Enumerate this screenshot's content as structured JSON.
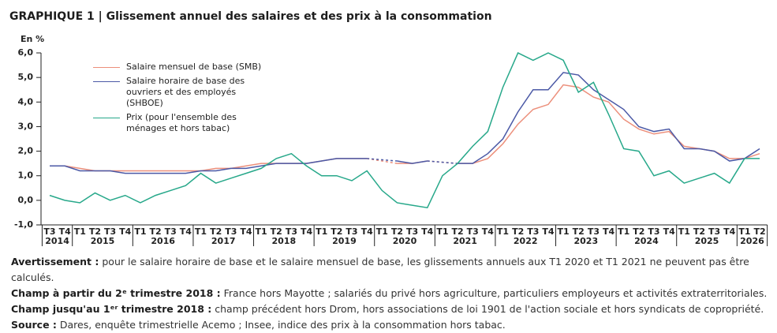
{
  "chart_data": {
    "type": "line",
    "title": "GRAPHIQUE 1 | Glissement annuel des salaires et des prix à la consommation",
    "y_label": "En %",
    "categories": [
      "T3",
      "T4",
      "T1",
      "T2",
      "T3",
      "T4",
      "T1",
      "T2",
      "T3",
      "T4",
      "T1",
      "T2",
      "T3",
      "T4",
      "T1",
      "T2",
      "T3",
      "T4",
      "T1",
      "T2",
      "T3",
      "T4",
      "T1",
      "T2",
      "T3",
      "T4",
      "T1",
      "T2",
      "T3",
      "T4",
      "T1",
      "T2",
      "T3",
      "T4",
      "T1",
      "T2",
      "T3",
      "T4",
      "T1",
      "T2",
      "T3",
      "T4",
      "T1",
      "T2",
      "T3",
      "T4",
      "T1",
      "T2"
    ],
    "years": [
      "2014",
      "2015",
      "2016",
      "2017",
      "2018",
      "2019",
      "2020",
      "2021",
      "2022",
      "2023",
      "2024",
      "2025",
      "2026"
    ],
    "ylim": [
      -1,
      6.2
    ],
    "yticks": [
      {
        "value": -1,
        "label": "-1,0"
      },
      {
        "value": 0,
        "label": "0,0"
      },
      {
        "value": 1,
        "label": "1,0"
      },
      {
        "value": 2,
        "label": "2,0"
      },
      {
        "value": 3,
        "label": "3,0"
      },
      {
        "value": 4,
        "label": "4,0"
      },
      {
        "value": 5,
        "label": "5,0"
      },
      {
        "value": 6,
        "label": "6,0"
      }
    ],
    "series": [
      {
        "name": "Salaire mensuel de base (SMB)",
        "color": "#ec8f7b",
        "values": [
          1.4,
          1.4,
          1.3,
          1.2,
          1.2,
          1.2,
          1.2,
          1.2,
          1.2,
          1.2,
          1.2,
          1.3,
          1.3,
          1.4,
          1.5,
          1.5,
          1.5,
          1.5,
          1.6,
          1.7,
          1.7,
          1.7,
          null,
          1.5,
          1.5,
          1.6,
          null,
          1.5,
          1.5,
          1.7,
          2.3,
          3.1,
          3.7,
          3.9,
          4.7,
          4.6,
          4.2,
          4.0,
          3.3,
          2.9,
          2.7,
          2.8,
          2.2,
          2.1,
          2.0,
          1.7,
          1.7,
          1.9
        ]
      },
      {
        "name": "Salaire horaire de base des ouvriers et des employés (SHBOE)",
        "color": "#4b59a6",
        "values": [
          1.4,
          1.4,
          1.2,
          1.2,
          1.2,
          1.1,
          1.1,
          1.1,
          1.1,
          1.1,
          1.2,
          1.2,
          1.3,
          1.3,
          1.4,
          1.5,
          1.5,
          1.5,
          1.6,
          1.7,
          1.7,
          1.7,
          null,
          1.6,
          1.5,
          1.6,
          null,
          1.5,
          1.5,
          1.9,
          2.5,
          3.6,
          4.5,
          4.5,
          5.2,
          5.1,
          4.5,
          4.1,
          3.7,
          3.0,
          2.8,
          2.9,
          2.1,
          2.1,
          2.0,
          1.6,
          1.7,
          2.1
        ]
      },
      {
        "name": "Prix (pour l'ensemble des ménages et hors tabac)",
        "color": "#27a88a",
        "values": [
          0.2,
          0.0,
          -0.1,
          0.3,
          0.0,
          0.2,
          -0.1,
          0.2,
          0.4,
          0.6,
          1.1,
          0.7,
          0.9,
          1.1,
          1.3,
          1.7,
          1.9,
          1.4,
          1.0,
          1.0,
          0.8,
          1.2,
          0.4,
          -0.1,
          -0.2,
          -0.3,
          1.0,
          1.5,
          2.2,
          2.8,
          4.6,
          6.0,
          5.7,
          6.0,
          5.7,
          4.4,
          4.8,
          3.5,
          2.1,
          2.0,
          1.0,
          1.2,
          0.7,
          0.9,
          1.1,
          0.7,
          1.7,
          1.7
        ]
      }
    ],
    "notes": [
      {
        "label": "Avertissement :",
        "text": "pour le salaire horaire de base et le salaire mensuel de base, les glissements annuels aux T1 2020 et T1 2021 ne peuvent pas être calculés."
      },
      {
        "label": "Champ à partir du 2ᵉ trimestre 2018 :",
        "text": "France hors Mayotte ; salariés du privé hors agriculture, particuliers employeurs et activités extraterritoriales."
      },
      {
        "label": "Champ jusqu'au 1ᵉʳ trimestre 2018 :",
        "text": "champ précédent hors Drom, hors associations de loi 1901 de l'action sociale et hors syndicats de copropriété."
      },
      {
        "label": "Source :",
        "text": "Dares, enquête trimestrielle Acemo ; Insee, indice des prix à la consommation hors tabac."
      }
    ]
  }
}
